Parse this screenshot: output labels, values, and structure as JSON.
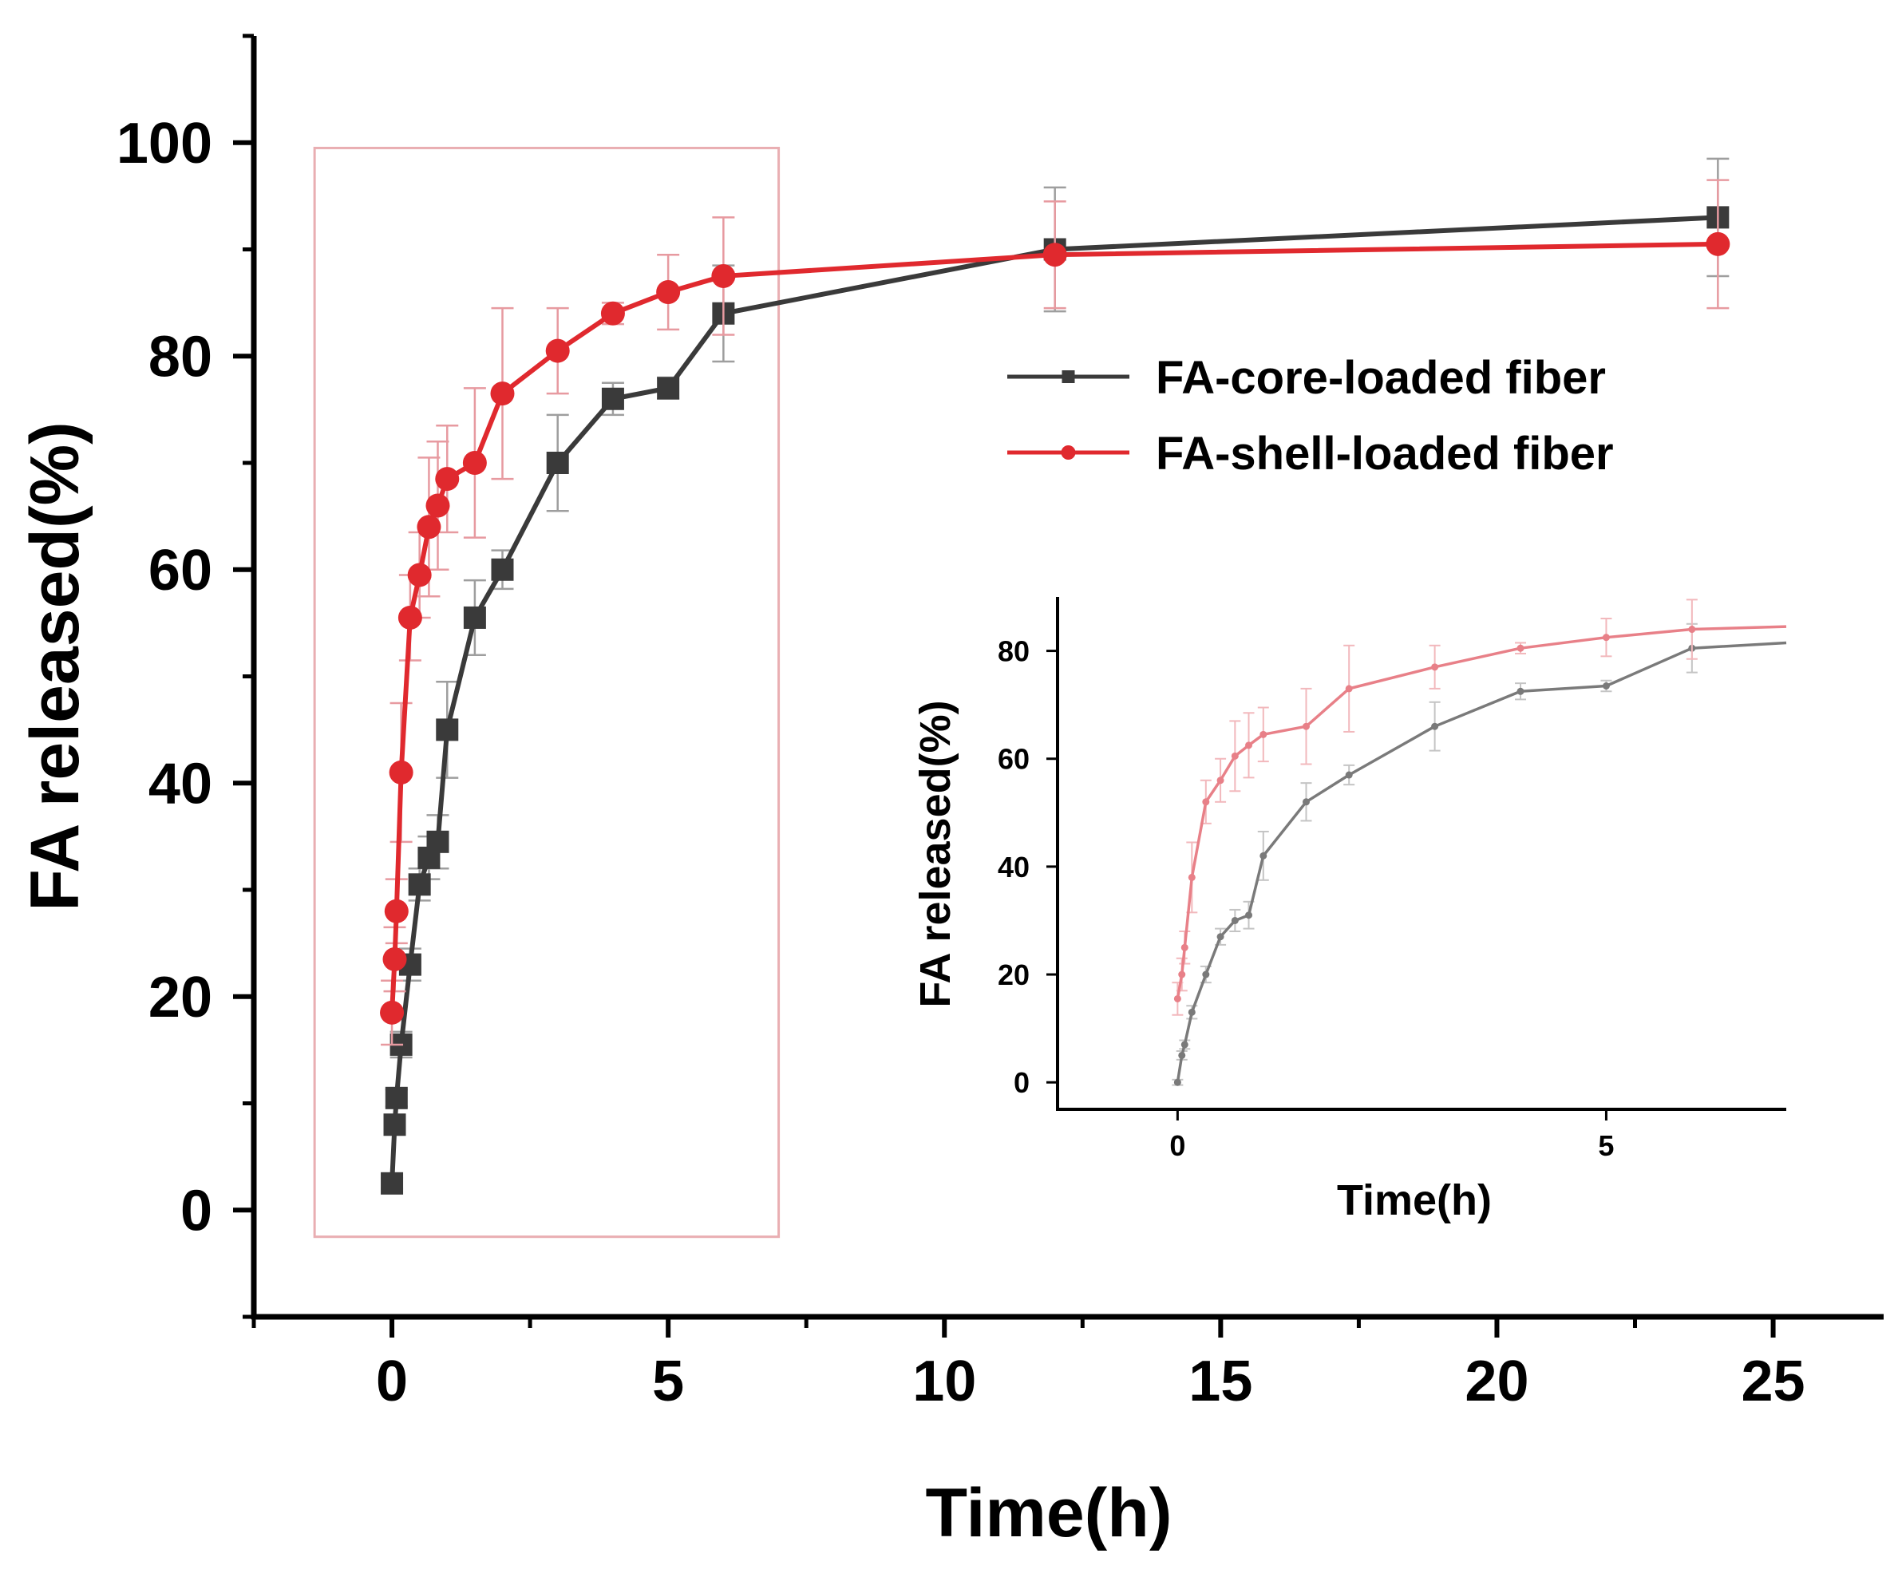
{
  "chart_data": [
    {
      "type": "line",
      "role": "main",
      "title": "",
      "xlabel": "Time(h)",
      "ylabel": "FA released(%)",
      "xlim": [
        -2.5,
        27
      ],
      "ylim": [
        -10,
        110
      ],
      "xticks": [
        0,
        5,
        10,
        15,
        20,
        25
      ],
      "yticks": [
        0,
        20,
        40,
        60,
        80,
        100
      ],
      "highlight_box": {
        "x": [
          -1.4,
          7.0
        ],
        "y": [
          -2.5,
          99.5
        ],
        "color": "#e9aeb2"
      },
      "legend_position": "right-middle",
      "series": [
        {
          "name": "FA-core-loaded fiber",
          "color": "#3a3a3a",
          "marker": "square",
          "x": [
            0,
            0.05,
            0.083,
            0.167,
            0.33,
            0.5,
            0.67,
            0.83,
            1,
            1.5,
            2,
            3,
            4,
            5,
            6,
            12,
            24
          ],
          "y": [
            2.5,
            8,
            10.5,
            15.5,
            23,
            30.5,
            33,
            34.5,
            45,
            55.5,
            60,
            70,
            76,
            77,
            84,
            90,
            93
          ],
          "err": [
            0.5,
            0.8,
            0.8,
            1.2,
            1.5,
            1.5,
            2,
            2.5,
            4.5,
            3.5,
            1.8,
            4.5,
            1.5,
            1,
            4.5,
            5.8,
            5.5
          ]
        },
        {
          "name": "FA-shell-loaded fiber",
          "color": "#e0292e",
          "marker": "circle",
          "x": [
            0,
            0.05,
            0.083,
            0.167,
            0.33,
            0.5,
            0.67,
            0.83,
            1,
            1.5,
            2,
            3,
            4,
            5,
            6,
            12,
            24
          ],
          "y": [
            18.5,
            23.5,
            28,
            41,
            55.5,
            59.5,
            64,
            66,
            68.5,
            70,
            76.5,
            80.5,
            84,
            86,
            87.5,
            89.5,
            90.5
          ],
          "err": [
            3,
            3,
            3,
            6.5,
            4,
            4,
            6.5,
            6,
            5,
            7,
            8,
            4,
            1,
            3.5,
            5.5,
            5,
            6
          ]
        }
      ]
    },
    {
      "type": "line",
      "role": "inset",
      "title": "",
      "xlabel": "Time(h)",
      "ylabel": "FA released(%)",
      "xlim": [
        -1.4,
        7.1
      ],
      "ylim": [
        -5,
        90
      ],
      "xticks": [
        0,
        5
      ],
      "yticks": [
        0,
        20,
        40,
        60,
        80
      ],
      "series": [
        {
          "name": "FA-core-loaded fiber",
          "color": "#7a7a7a",
          "x": [
            0,
            0.05,
            0.083,
            0.167,
            0.33,
            0.5,
            0.67,
            0.83,
            1,
            1.5,
            2,
            3,
            4,
            5,
            6,
            7.1
          ],
          "y": [
            0,
            5,
            7,
            13,
            20,
            27,
            30,
            31,
            42,
            52,
            57,
            66,
            72.5,
            73.5,
            80.5,
            81.5
          ],
          "err": [
            0.5,
            0.8,
            0.8,
            1.2,
            1.5,
            1.5,
            2,
            2.5,
            4.5,
            3.5,
            1.8,
            4.5,
            1.5,
            1,
            4.5,
            0
          ]
        },
        {
          "name": "FA-shell-loaded fiber",
          "color": "#e88088",
          "x": [
            0,
            0.05,
            0.083,
            0.167,
            0.33,
            0.5,
            0.67,
            0.83,
            1,
            1.5,
            2,
            3,
            4,
            5,
            6,
            7.1
          ],
          "y": [
            15.5,
            20,
            25,
            38,
            52,
            56,
            60.5,
            62.5,
            64.5,
            66,
            73,
            77,
            80.5,
            82.5,
            84,
            84.5
          ],
          "err": [
            3,
            3,
            3,
            6.5,
            4,
            4,
            6.5,
            6,
            5,
            7,
            8,
            4,
            1,
            3.5,
            5.5,
            0
          ]
        }
      ]
    }
  ]
}
